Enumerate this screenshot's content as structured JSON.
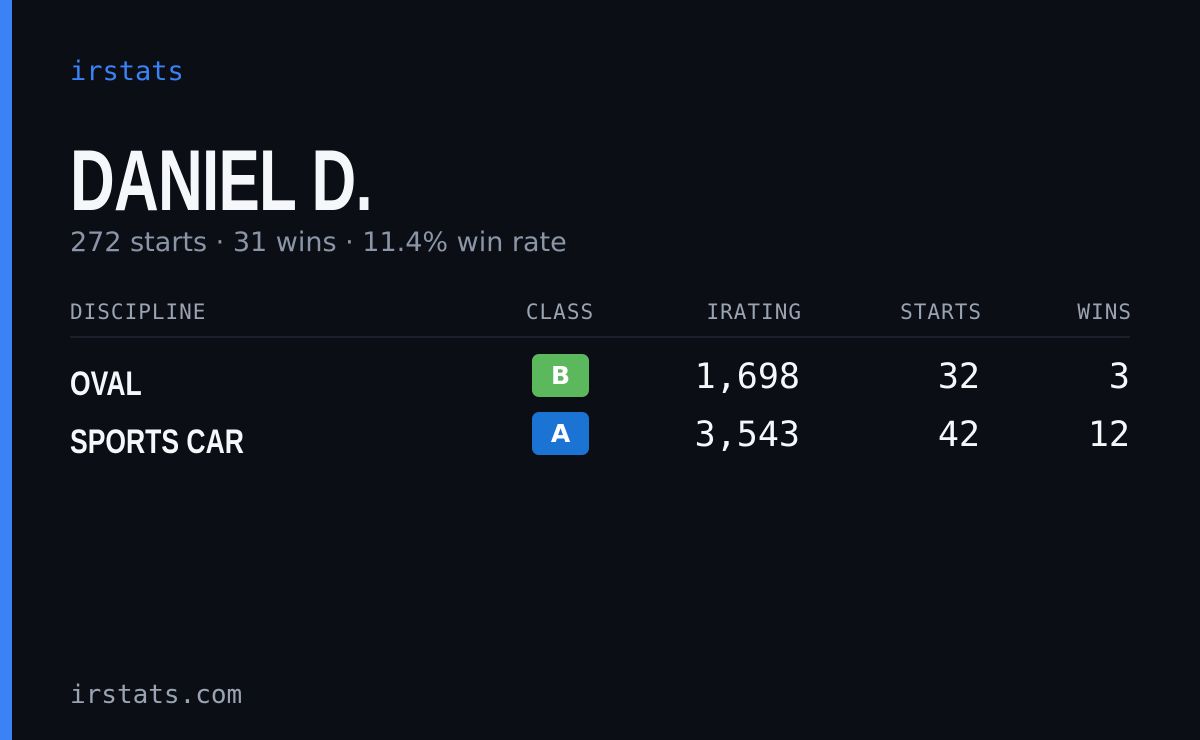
{
  "brand": "irstats",
  "driver": {
    "name": "DANIEL D.",
    "summary": "272 starts · 31 wins · 11.4% win rate"
  },
  "table": {
    "headers": [
      "DISCIPLINE",
      "CLASS",
      "IRATING",
      "STARTS",
      "WINS"
    ],
    "rows": [
      [
        "OVAL",
        "B",
        "1,698",
        "32",
        "3"
      ],
      [
        "SPORTS CAR",
        "A",
        "3,543",
        "42",
        "12"
      ]
    ]
  },
  "footer": "irstats.com"
}
